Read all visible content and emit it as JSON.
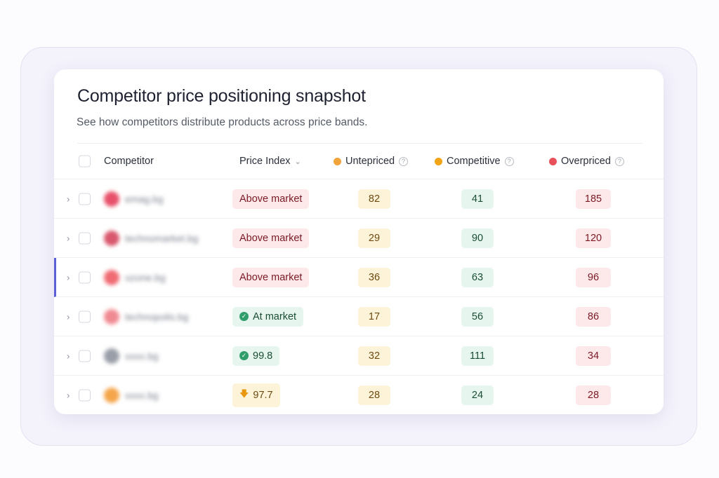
{
  "title": "Competitor price positioning snapshot",
  "subtitle": "See how competitors distribute products across price bands.",
  "columns": {
    "competitor": "Competitor",
    "price_index": "Price Index",
    "untepriced": "Untepriced",
    "competitive": "Competitive",
    "overpriced": "Overpriced",
    "help": "?"
  },
  "colors": {
    "untepriced": "#f0a43a",
    "competitive": "#f0a416",
    "overpriced": "#e8505b",
    "accent": "#5b5fd6"
  },
  "rows": [
    {
      "name": "emag.bg",
      "avatar": "#e8506a",
      "index": "Above market",
      "status": "above",
      "u": "82",
      "c": "41",
      "o": "185"
    },
    {
      "name": "technomarket.bg",
      "avatar": "#d9576c",
      "index": "Above market",
      "status": "above",
      "u": "29",
      "c": "90",
      "o": "120"
    },
    {
      "name": "ozone.bg",
      "avatar": "#f06b73",
      "index": "Above market",
      "status": "above",
      "u": "36",
      "c": "63",
      "o": "96",
      "selected": true
    },
    {
      "name": "technopolis.bg",
      "avatar": "#f08a92",
      "index": "At market",
      "status": "at",
      "u": "17",
      "c": "56",
      "o": "86"
    },
    {
      "name": "xxxx.bg",
      "avatar": "#9a9ea8",
      "index": "99.8",
      "status": "at",
      "u": "32",
      "c": "111",
      "o": "34"
    },
    {
      "name": "xxxx.bg",
      "avatar": "#f5a54a",
      "index": "97.7",
      "status": "below",
      "u": "28",
      "c": "24",
      "o": "28"
    }
  ]
}
